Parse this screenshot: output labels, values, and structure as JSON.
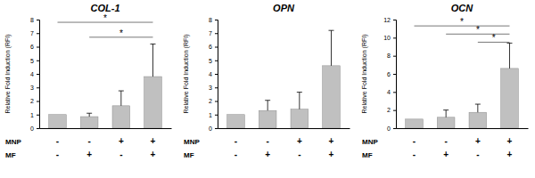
{
  "chart_data": [
    {
      "type": "bar",
      "title": "COL-1",
      "ylabel": "Relative Fold Induction (RFI)",
      "categories": [
        null,
        null,
        null,
        null
      ],
      "values": [
        1,
        0.85,
        1.65,
        3.8
      ],
      "errors": [
        null,
        0.25,
        1.1,
        2.4
      ],
      "color": "#c0c0c0",
      "ylim": [
        0,
        8
      ],
      "yticks": [
        0,
        1,
        2,
        3,
        4,
        5,
        6,
        7,
        8
      ],
      "conditions": [
        {
          "label": "MNP",
          "levels": [
            "-",
            "-",
            "+",
            "+"
          ]
        },
        {
          "label": "MF",
          "levels": [
            "-",
            "+",
            "-",
            "+"
          ]
        }
      ],
      "significance": [
        {
          "from": 0,
          "to": 3,
          "y": 7.8,
          "label": "*"
        },
        {
          "from": 1,
          "to": 3,
          "y": 6.7,
          "label": "*"
        }
      ]
    },
    {
      "type": "bar",
      "title": "OPN",
      "ylabel": "Relative Fold Induction (RFI)",
      "categories": [
        null,
        null,
        null,
        null
      ],
      "values": [
        1,
        1.3,
        1.4,
        4.6
      ],
      "errors": [
        null,
        0.75,
        1.25,
        2.6
      ],
      "color": "#c0c0c0",
      "ylim": [
        0,
        8
      ],
      "yticks": [
        0,
        1,
        2,
        3,
        4,
        5,
        6,
        7,
        8
      ],
      "conditions": [
        {
          "label": "MNP",
          "levels": [
            "-",
            "-",
            "+",
            "+"
          ]
        },
        {
          "label": "MF",
          "levels": [
            "-",
            "+",
            "-",
            "+"
          ]
        }
      ],
      "significance": []
    },
    {
      "type": "bar",
      "title": "OCN",
      "ylabel": "Relative Fold Induction (RFI)",
      "categories": [
        null,
        null,
        null,
        null
      ],
      "values": [
        1,
        1.2,
        1.75,
        6.6
      ],
      "errors": [
        null,
        0.8,
        0.9,
        2.8
      ],
      "color": "#c0c0c0",
      "ylim": [
        0,
        12
      ],
      "yticks": [
        0,
        2,
        4,
        6,
        8,
        10,
        12
      ],
      "conditions": [
        {
          "label": "MNP",
          "levels": [
            "-",
            "-",
            "+",
            "+"
          ]
        },
        {
          "label": "MF",
          "levels": [
            "-",
            "+",
            "-",
            "+"
          ]
        }
      ],
      "significance": [
        {
          "from": 0,
          "to": 3,
          "y": 11.3,
          "label": "*"
        },
        {
          "from": 1,
          "to": 3,
          "y": 10.4,
          "label": "*"
        },
        {
          "from": 2,
          "to": 3,
          "y": 9.5,
          "label": "*"
        }
      ]
    }
  ]
}
